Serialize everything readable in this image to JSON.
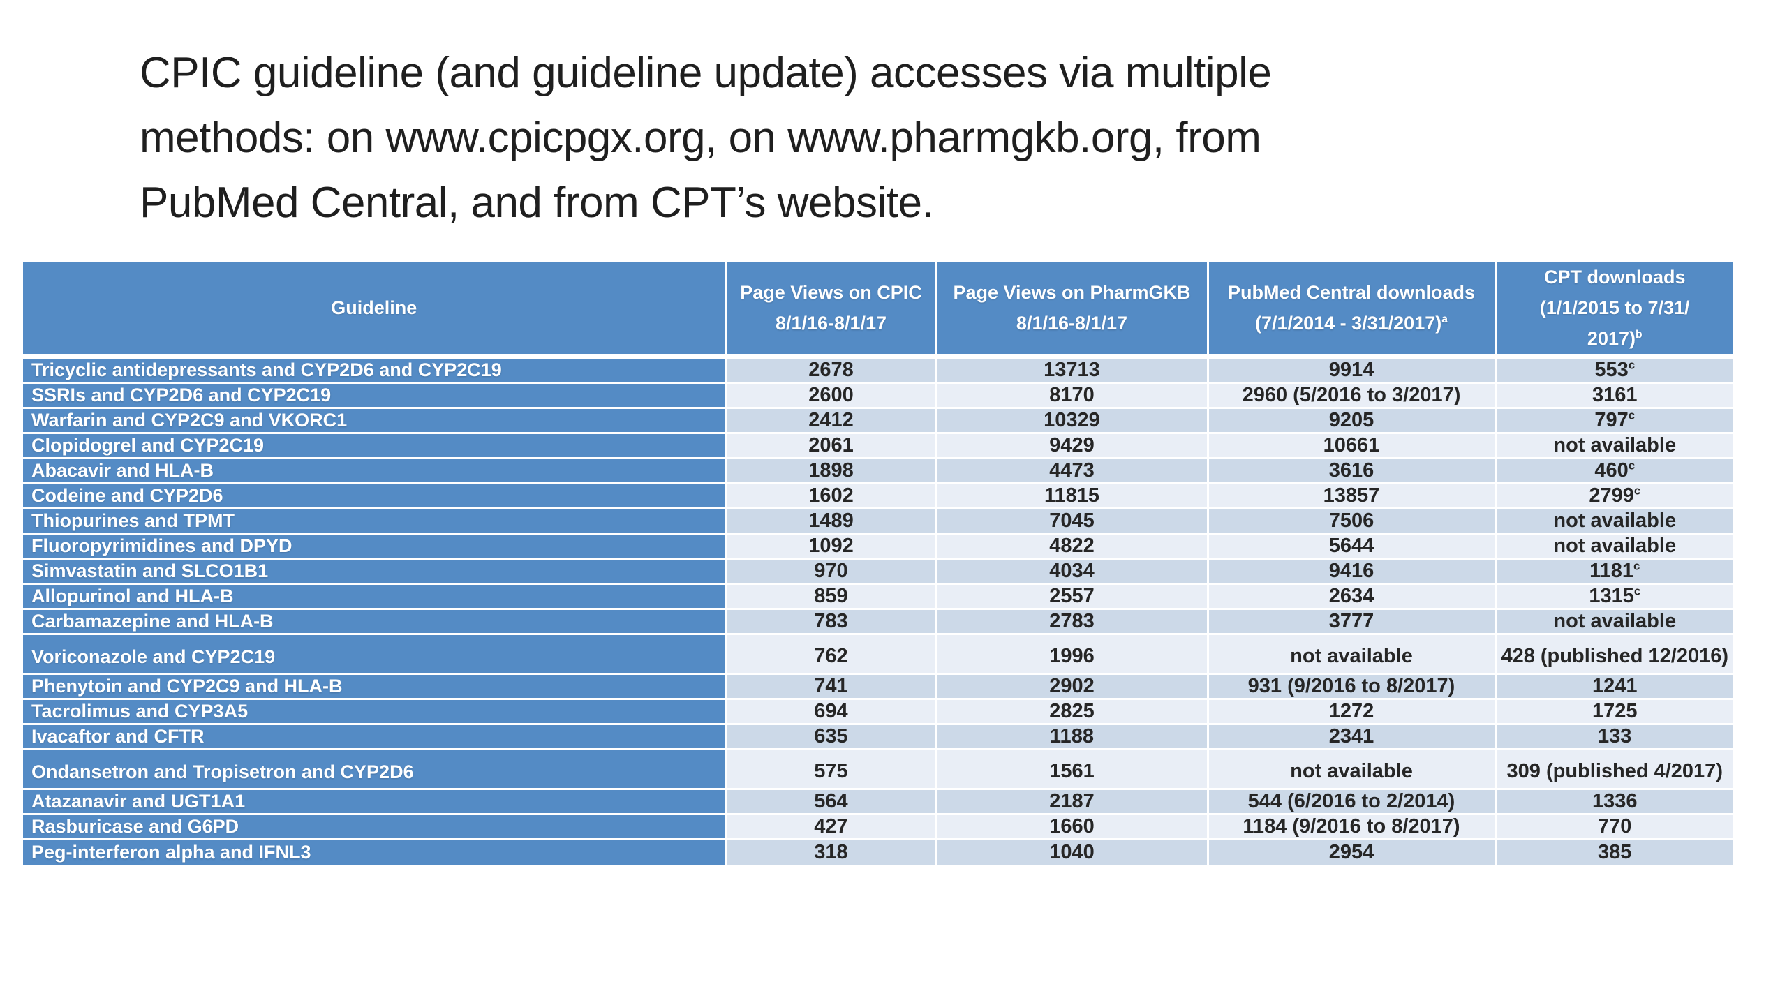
{
  "slide": {
    "title_lines": [
      "CPIC guideline (and guideline update) accesses via multiple",
      "methods: on www.cpicpgx.org, on www.pharmgkb.org, from",
      "PubMed Central, and from CPT’s website."
    ]
  },
  "colors": {
    "accent_blue": "#548bc5",
    "row_band_dark": "#ccd9e8",
    "row_band_light": "#e9eef6",
    "body_text": "#262626",
    "title_text": "#1f1f1f",
    "header_text": "#ffffff",
    "grid_lines": "#ffffff"
  },
  "table": {
    "columns": [
      {
        "key": "guideline",
        "lines": [
          "Guideline"
        ]
      },
      {
        "key": "cpic",
        "lines": [
          "Page Views on CPIC",
          "8/1/16-8/1/17"
        ]
      },
      {
        "key": "pharmgkb",
        "lines": [
          "Page Views on PharmGKB",
          "8/1/16-8/1/17"
        ]
      },
      {
        "key": "pubmed",
        "lines": [
          "PubMed Central downloads",
          "(7/1/2014 - 3/31/2017)"
        ],
        "superscript": "a"
      },
      {
        "key": "cpt",
        "lines": [
          "CPT downloads",
          "(1/1/2015 to 7/31/",
          "2017)"
        ],
        "superscript": "b"
      }
    ],
    "rows": [
      {
        "guideline": "Tricyclic antidepressants and CYP2D6 and CYP2C19",
        "cpic": "2678",
        "pharmgkb": "13713",
        "pubmed": "9914",
        "cpt": "553",
        "cpt_sup": "c"
      },
      {
        "guideline": "SSRIs and CYP2D6 and CYP2C19",
        "cpic": "2600",
        "pharmgkb": "8170",
        "pubmed": "2960 (5/2016 to 3/2017)",
        "cpt": "3161"
      },
      {
        "guideline": "Warfarin and CYP2C9 and VKORC1",
        "cpic": "2412",
        "pharmgkb": "10329",
        "pubmed": "9205",
        "cpt": "797",
        "cpt_sup": "c"
      },
      {
        "guideline": "Clopidogrel and CYP2C19",
        "cpic": "2061",
        "pharmgkb": "9429",
        "pubmed": "10661",
        "cpt": "not available"
      },
      {
        "guideline": "Abacavir and HLA-B",
        "cpic": "1898",
        "pharmgkb": "4473",
        "pubmed": "3616",
        "cpt": "460",
        "cpt_sup": "c"
      },
      {
        "guideline": "Codeine and CYP2D6",
        "cpic": "1602",
        "pharmgkb": "11815",
        "pubmed": "13857",
        "cpt": "2799",
        "cpt_sup": "c"
      },
      {
        "guideline": "Thiopurines and TPMT",
        "cpic": "1489",
        "pharmgkb": "7045",
        "pubmed": "7506",
        "cpt": "not available"
      },
      {
        "guideline": "Fluoropyrimidines and DPYD",
        "cpic": "1092",
        "pharmgkb": "4822",
        "pubmed": "5644",
        "cpt": "not available"
      },
      {
        "guideline": "Simvastatin and SLCO1B1",
        "cpic": "970",
        "pharmgkb": "4034",
        "pubmed": "9416",
        "cpt": "1181",
        "cpt_sup": "c"
      },
      {
        "guideline": "Allopurinol and HLA-B",
        "cpic": "859",
        "pharmgkb": "2557",
        "pubmed": "2634",
        "cpt": "1315",
        "cpt_sup": "c"
      },
      {
        "guideline": "Carbamazepine and HLA-B",
        "cpic": "783",
        "pharmgkb": "2783",
        "pubmed": "3777",
        "cpt": "not available"
      },
      {
        "guideline": "Voriconazole and CYP2C19",
        "cpic": "762",
        "pharmgkb": "1996",
        "pubmed": "not available",
        "cpt": "428 (published 12/2016)",
        "tall": true
      },
      {
        "guideline": "Phenytoin and CYP2C9 and HLA-B",
        "cpic": "741",
        "pharmgkb": "2902",
        "pubmed": "931 (9/2016 to 8/2017)",
        "cpt": "1241"
      },
      {
        "guideline": "Tacrolimus and CYP3A5",
        "cpic": "694",
        "pharmgkb": "2825",
        "pubmed": "1272",
        "cpt": "1725"
      },
      {
        "guideline": "Ivacaftor and CFTR",
        "cpic": "635",
        "pharmgkb": "1188",
        "pubmed": "2341",
        "cpt": "133"
      },
      {
        "guideline": "Ondansetron and Tropisetron and CYP2D6",
        "cpic": "575",
        "pharmgkb": "1561",
        "pubmed": "not available",
        "cpt": "309 (published 4/2017)",
        "tall": true
      },
      {
        "guideline": "Atazanavir and UGT1A1",
        "cpic": "564",
        "pharmgkb": "2187",
        "pubmed": "544 (6/2016 to 2/2014)",
        "cpt": "1336"
      },
      {
        "guideline": "Rasburicase and G6PD",
        "cpic": "427",
        "pharmgkb": "1660",
        "pubmed": "1184 (9/2016 to 8/2017)",
        "cpt": "770"
      },
      {
        "guideline": "Peg-interferon alpha and IFNL3",
        "cpic": "318",
        "pharmgkb": "1040",
        "pubmed": "2954",
        "cpt": "385"
      }
    ]
  }
}
